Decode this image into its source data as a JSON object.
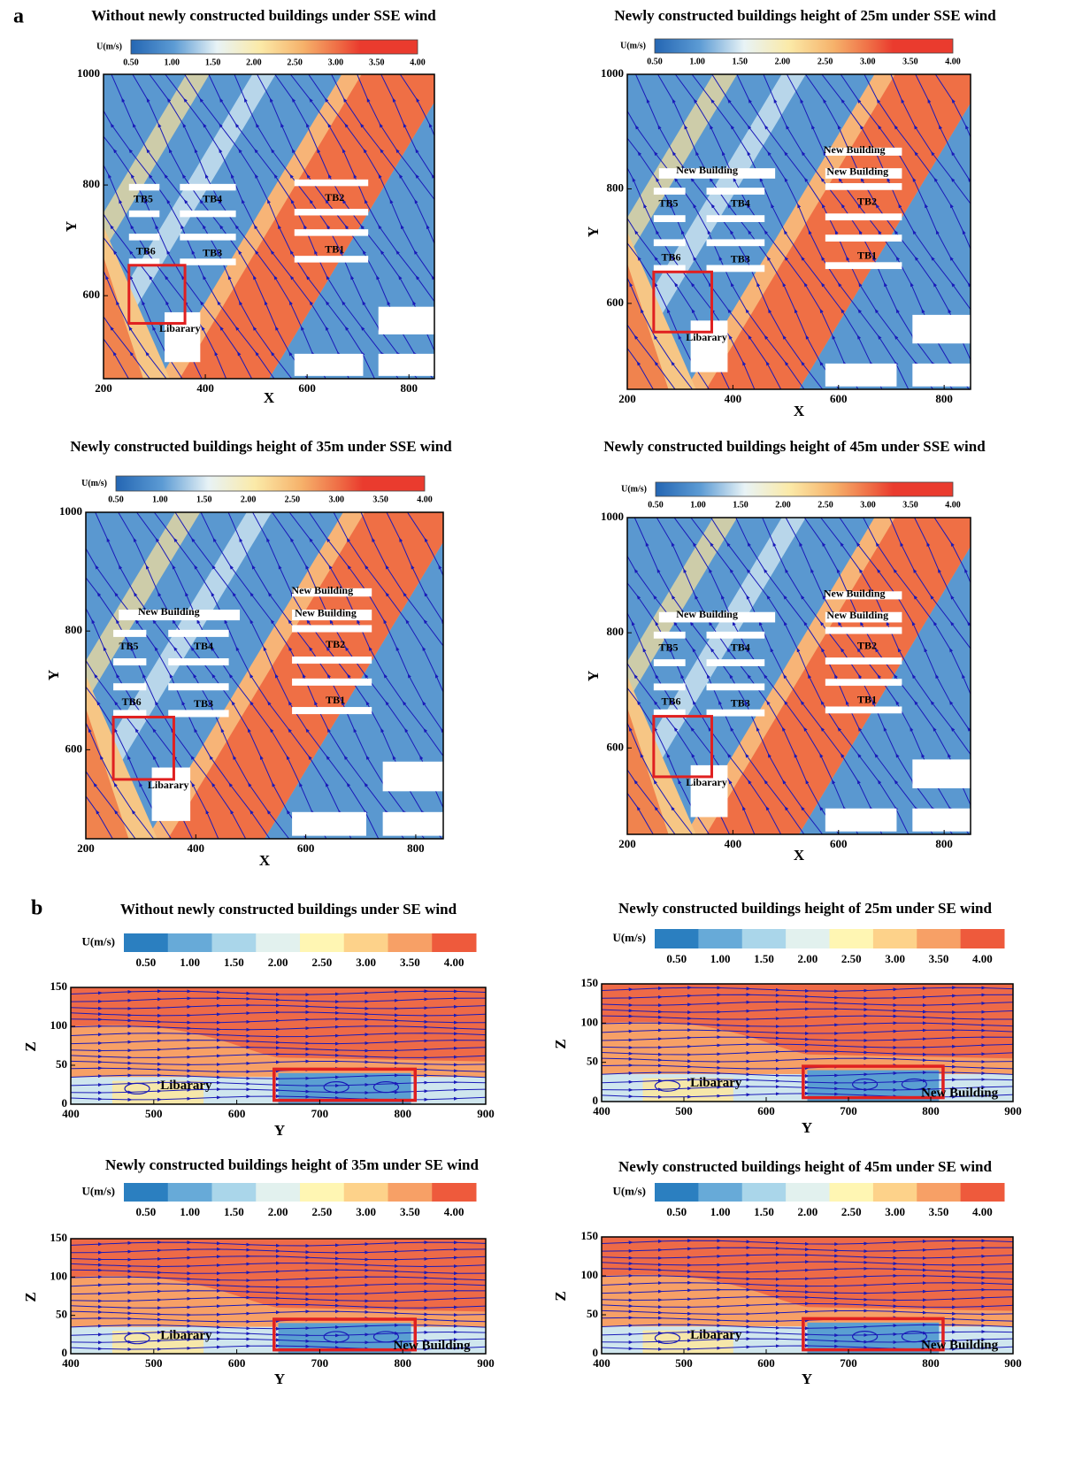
{
  "panel_labels": [
    "a",
    "b"
  ],
  "chart_data": [
    {
      "type": "streamline",
      "title": "Without newly constructed buildings under SSE wind",
      "xlabel": "X",
      "ylabel": "Y",
      "xlim": [
        200,
        850
      ],
      "ylim": [
        450,
        1000
      ],
      "xticks": [
        200,
        400,
        600,
        800
      ],
      "yticks": [
        600,
        800,
        1000
      ],
      "colorbar": {
        "label": "U(m/s)",
        "clim": [
          0.5,
          4
        ],
        "ticks": [
          {
            "value": 0.5,
            "label": "0.50"
          },
          {
            "value": 1,
            "label": "1.00"
          },
          {
            "value": 1.5,
            "label": "1.50"
          },
          {
            "value": 2,
            "label": "2.00"
          },
          {
            "value": 2.5,
            "label": "2.50"
          },
          {
            "value": 3,
            "label": "3.00"
          },
          {
            "value": 3.5,
            "label": "3.50"
          },
          {
            "value": 4,
            "label": "4.00"
          }
        ]
      },
      "annotations": [
        "TB5",
        "TB4",
        "TB2",
        "TB6",
        "TB3",
        "TB1",
        "Libarary"
      ]
    },
    {
      "type": "streamline",
      "title": "Newly constructed buildings height of 25m under SSE wind",
      "xlabel": "X",
      "ylabel": "Y",
      "xlim": [
        200,
        850
      ],
      "ylim": [
        450,
        1000
      ],
      "xticks": [
        200,
        400,
        600,
        800
      ],
      "yticks": [
        600,
        800,
        1000
      ],
      "colorbar": {
        "label": "U(m/s)",
        "clim": [
          0.5,
          4
        ],
        "ticks": [
          {
            "value": 0.5,
            "label": "0.50"
          },
          {
            "value": 1,
            "label": "1.00"
          },
          {
            "value": 1.5,
            "label": "1.50"
          },
          {
            "value": 2,
            "label": "2.00"
          },
          {
            "value": 2.5,
            "label": "2.50"
          },
          {
            "value": 3,
            "label": "3.00"
          },
          {
            "value": 3.5,
            "label": "3.50"
          },
          {
            "value": 4,
            "label": "4.00"
          }
        ]
      },
      "annotations": [
        "New Building",
        "New Building",
        "New Building",
        "TB5",
        "TB4",
        "TB2",
        "TB6",
        "TB3",
        "TB1",
        "Libarary"
      ]
    },
    {
      "type": "streamline",
      "title": "Newly constructed buildings height of 35m under SSE wind",
      "xlabel": "X",
      "ylabel": "Y",
      "xlim": [
        200,
        850
      ],
      "ylim": [
        450,
        1000
      ],
      "xticks": [
        200,
        400,
        600,
        800
      ],
      "yticks": [
        600,
        800,
        1000
      ],
      "colorbar": {
        "label": "U(m/s)",
        "clim": [
          0.5,
          4
        ],
        "ticks": [
          {
            "value": 0.5,
            "label": "0.50"
          },
          {
            "value": 1,
            "label": "1.00"
          },
          {
            "value": 1.5,
            "label": "1.50"
          },
          {
            "value": 2,
            "label": "2.00"
          },
          {
            "value": 2.5,
            "label": "2.50"
          },
          {
            "value": 3,
            "label": "3.00"
          },
          {
            "value": 3.5,
            "label": "3.50"
          },
          {
            "value": 4,
            "label": "4.00"
          }
        ]
      },
      "annotations": [
        "New Building",
        "New Building",
        "New Building",
        "TB5",
        "TB4",
        "TB2",
        "TB6",
        "TB3",
        "TB1",
        "Libarary"
      ]
    },
    {
      "type": "streamline",
      "title": "Newly constructed buildings height of 45m under SSE wind",
      "xlabel": "X",
      "ylabel": "Y",
      "xlim": [
        200,
        850
      ],
      "ylim": [
        450,
        1000
      ],
      "xticks": [
        200,
        400,
        600,
        800
      ],
      "yticks": [
        600,
        800,
        1000
      ],
      "colorbar": {
        "label": "U(m/s)",
        "clim": [
          0.5,
          4
        ],
        "ticks": [
          {
            "value": 0.5,
            "label": "0.50"
          },
          {
            "value": 1,
            "label": "1.00"
          },
          {
            "value": 1.5,
            "label": "1.50"
          },
          {
            "value": 2,
            "label": "2.00"
          },
          {
            "value": 2.5,
            "label": "2.50"
          },
          {
            "value": 3,
            "label": "3.00"
          },
          {
            "value": 3.5,
            "label": "3.50"
          },
          {
            "value": 4,
            "label": "4.00"
          }
        ]
      },
      "annotations": [
        "New Building",
        "New Building",
        "New Building",
        "TB5",
        "TB4",
        "TB2",
        "TB6",
        "TB3",
        "TB1",
        "Libarary"
      ]
    },
    {
      "type": "section",
      "title": "Without newly constructed buildings under SE wind",
      "xlabel": "Y",
      "ylabel": "Z",
      "xlim": [
        400,
        900
      ],
      "ylim": [
        0,
        150
      ],
      "xticks": [
        400,
        500,
        600,
        700,
        800,
        900
      ],
      "yticks": [
        0,
        50,
        100,
        150
      ],
      "colorbar": {
        "label": "U(m/s)",
        "clim": [
          0.25,
          4.25
        ],
        "ticks": [
          {
            "value": 0.5,
            "label": "0.50"
          },
          {
            "value": 1,
            "label": "1.00"
          },
          {
            "value": 1.5,
            "label": "1.50"
          },
          {
            "value": 2,
            "label": "2.00"
          },
          {
            "value": 2.5,
            "label": "2.50"
          },
          {
            "value": 3,
            "label": "3.00"
          },
          {
            "value": 3.5,
            "label": "3.50"
          },
          {
            "value": 4,
            "label": "4.00"
          }
        ]
      },
      "annotations": [
        "Libarary"
      ]
    },
    {
      "type": "section",
      "title": "Newly constructed buildings height of 25m under SE wind",
      "xlabel": "Y",
      "ylabel": "Z",
      "xlim": [
        400,
        900
      ],
      "ylim": [
        0,
        150
      ],
      "xticks": [
        400,
        500,
        600,
        700,
        800,
        900
      ],
      "yticks": [
        0,
        50,
        100,
        150
      ],
      "colorbar": {
        "label": "U(m/s)",
        "clim": [
          0.25,
          4.25
        ],
        "ticks": [
          {
            "value": 0.5,
            "label": "0.50"
          },
          {
            "value": 1,
            "label": "1.00"
          },
          {
            "value": 1.5,
            "label": "1.50"
          },
          {
            "value": 2,
            "label": "2.00"
          },
          {
            "value": 2.5,
            "label": "2.50"
          },
          {
            "value": 3,
            "label": "3.00"
          },
          {
            "value": 3.5,
            "label": "3.50"
          },
          {
            "value": 4,
            "label": "4.00"
          }
        ]
      },
      "annotations": [
        "Libarary",
        "New Building"
      ]
    },
    {
      "type": "section",
      "title": "Newly constructed buildings height of 35m under SE wind",
      "xlabel": "Y",
      "ylabel": "Z",
      "xlim": [
        400,
        900
      ],
      "ylim": [
        0,
        150
      ],
      "xticks": [
        400,
        500,
        600,
        700,
        800,
        900
      ],
      "yticks": [
        0,
        50,
        100,
        150
      ],
      "colorbar": {
        "label": "U(m/s)",
        "clim": [
          0.25,
          4.25
        ],
        "ticks": [
          {
            "value": 0.5,
            "label": "0.50"
          },
          {
            "value": 1,
            "label": "1.00"
          },
          {
            "value": 1.5,
            "label": "1.50"
          },
          {
            "value": 2,
            "label": "2.00"
          },
          {
            "value": 2.5,
            "label": "2.50"
          },
          {
            "value": 3,
            "label": "3.00"
          },
          {
            "value": 3.5,
            "label": "3.50"
          },
          {
            "value": 4,
            "label": "4.00"
          }
        ]
      },
      "annotations": [
        "Libarary",
        "New Building"
      ]
    },
    {
      "type": "section",
      "title": "Newly constructed buildings height of 45m under SE wind",
      "xlabel": "Y",
      "ylabel": "Z",
      "xlim": [
        400,
        900
      ],
      "ylim": [
        0,
        150
      ],
      "xticks": [
        400,
        500,
        600,
        700,
        800,
        900
      ],
      "yticks": [
        0,
        50,
        100,
        150
      ],
      "colorbar": {
        "label": "U(m/s)",
        "clim": [
          0.25,
          4.25
        ],
        "ticks": [
          {
            "value": 0.5,
            "label": "0.50"
          },
          {
            "value": 1,
            "label": "1.00"
          },
          {
            "value": 1.5,
            "label": "1.50"
          },
          {
            "value": 2,
            "label": "2.00"
          },
          {
            "value": 2.5,
            "label": "2.50"
          },
          {
            "value": 3,
            "label": "3.00"
          },
          {
            "value": 3.5,
            "label": "3.50"
          },
          {
            "value": 4,
            "label": "4.00"
          }
        ]
      },
      "annotations": [
        "Libarary",
        "New Building"
      ]
    }
  ]
}
